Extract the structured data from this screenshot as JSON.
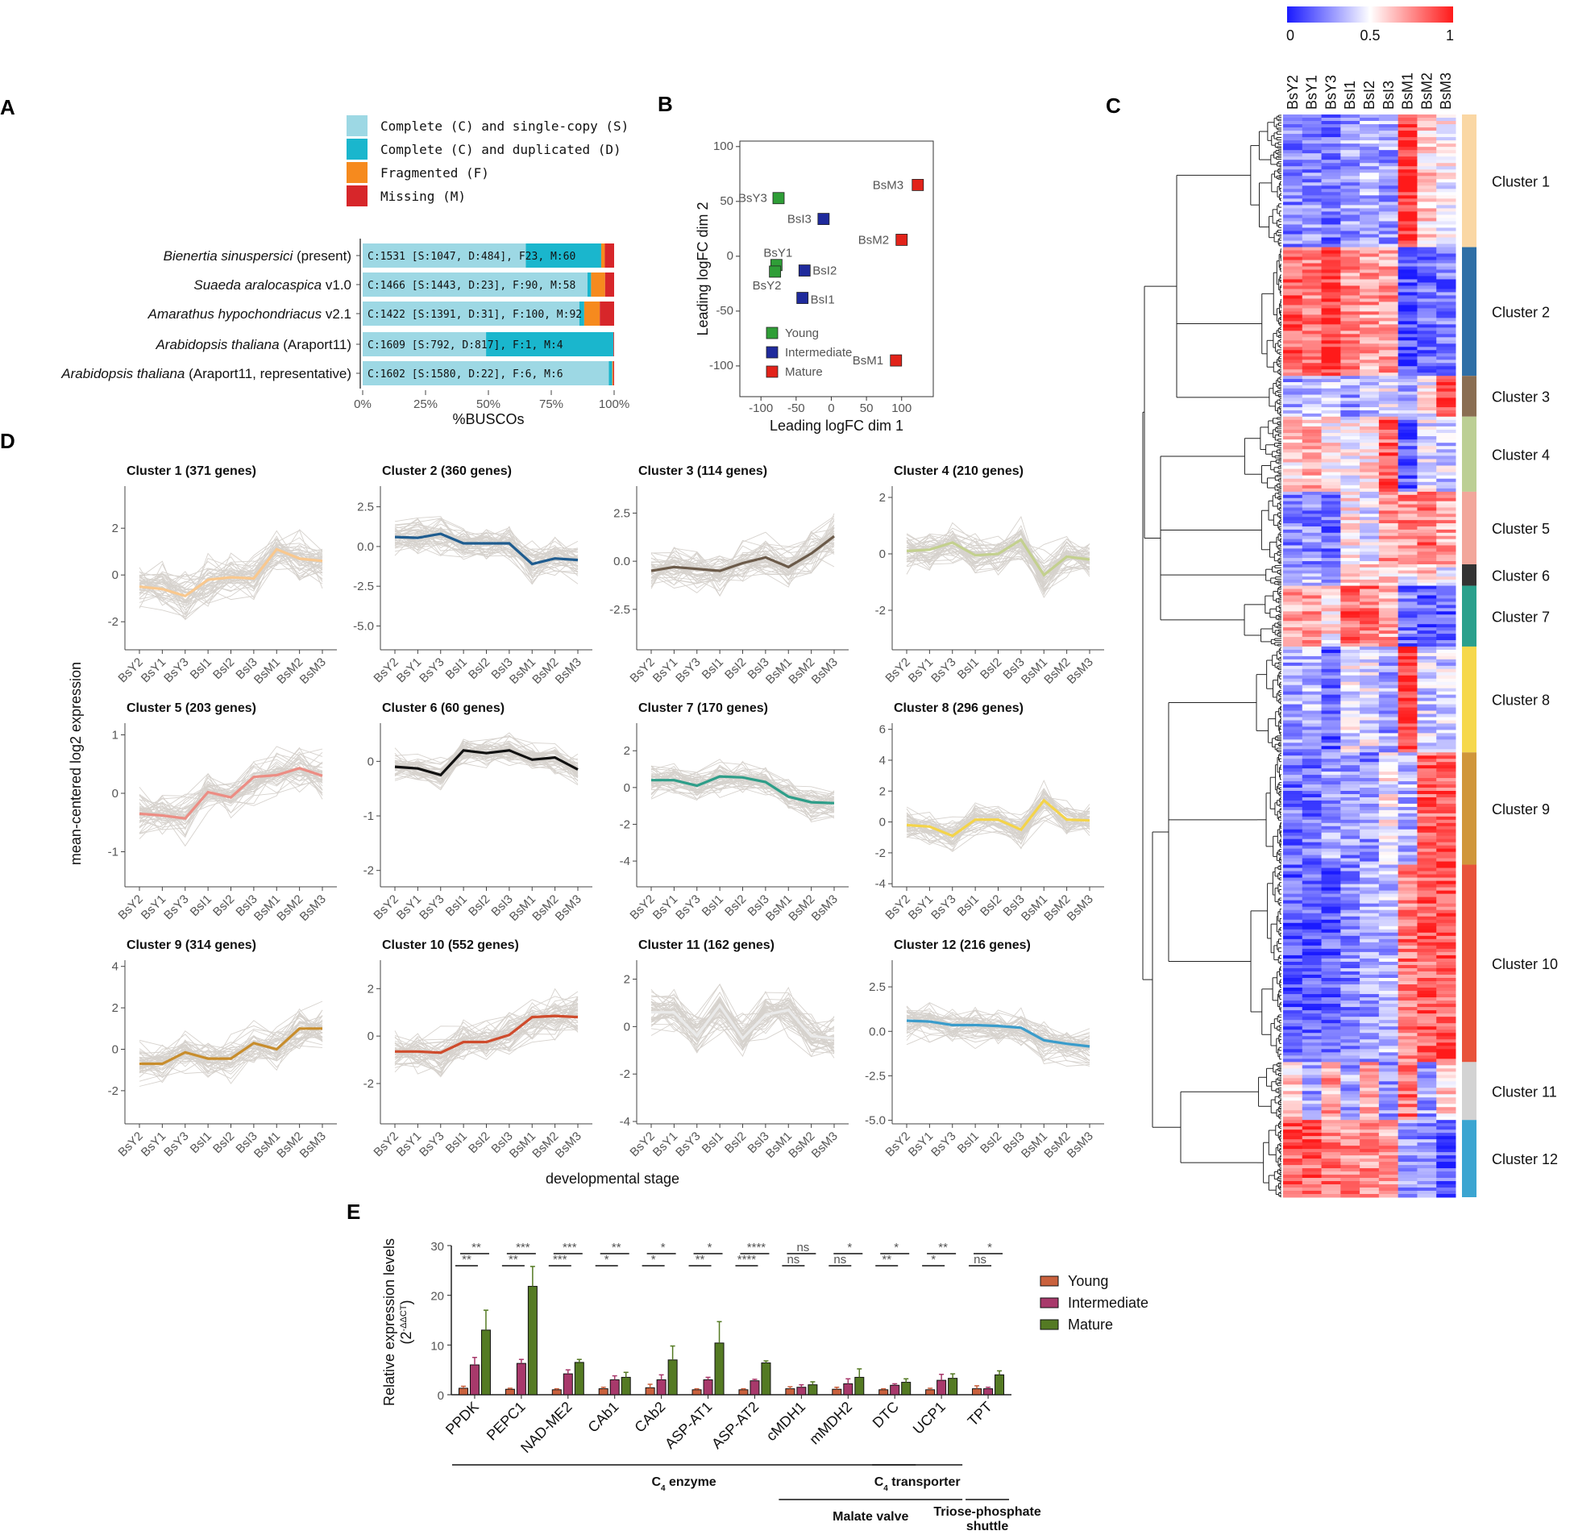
{
  "panels": {
    "A": "A",
    "B": "B",
    "C": "C",
    "D": "D",
    "E": "E"
  },
  "chart_data": [
    {
      "id": "A",
      "type": "bar",
      "stacked": true,
      "orientation": "horizontal",
      "legend": [
        "Complete (C) and single-copy (S)",
        "Complete (C) and duplicated (D)",
        "Fragmented (F)",
        "Missing (M)"
      ],
      "colors": [
        "#9dd8e4",
        "#1ab6cd",
        "#f68a1e",
        "#d7262a"
      ],
      "xlabel": "%BUSCOs",
      "xticks": [
        "0%",
        "25%",
        "50%",
        "75%",
        "100%"
      ],
      "rows": [
        {
          "name_italic": "Bienertia sinuspersici",
          "name_rest": " (present)",
          "label": "C:1531 [S:1047, D:484], F23, M:60",
          "S": 1047,
          "D": 484,
          "F": 23,
          "M": 60
        },
        {
          "name_italic": "Suaeda aralocaspica",
          "name_rest": " v1.0",
          "label": "C:1466 [S:1443, D:23], F:90, M:58",
          "S": 1443,
          "D": 23,
          "F": 90,
          "M": 58
        },
        {
          "name_italic": "Amarathus hypochondriacus",
          "name_rest": " v2.1",
          "label": "C:1422 [S:1391, D:31], F:100, M:92",
          "S": 1391,
          "D": 31,
          "F": 100,
          "M": 92
        },
        {
          "name_italic": "Arabidopsis thaliana",
          "name_rest": " (Araport11)",
          "label": "C:1609 [S:792, D:817], F:1, M:4",
          "S": 792,
          "D": 817,
          "F": 1,
          "M": 4
        },
        {
          "name_italic": "Arabidopsis thaliana",
          "name_rest": " (Araport11, representative)",
          "label": "C:1602 [S:1580, D:22], F:6, M:6",
          "S": 1580,
          "D": 22,
          "F": 6,
          "M": 6
        }
      ]
    },
    {
      "id": "B",
      "type": "scatter",
      "xlabel": "Leading logFC dim 1",
      "ylabel": "Leading logFC dim 2",
      "xlim": [
        -130,
        145
      ],
      "ylim": [
        -128,
        105
      ],
      "xticks": [
        -100,
        -50,
        0,
        50,
        100
      ],
      "yticks": [
        -100,
        -50,
        0,
        50,
        100
      ],
      "legend": [
        {
          "name": "Young",
          "color": "#2f9e37"
        },
        {
          "name": "Intermediate",
          "color": "#1f2a9c"
        },
        {
          "name": "Mature",
          "color": "#e2231a"
        }
      ],
      "points": [
        {
          "label": "BsY3",
          "x": -75,
          "y": 53,
          "group": 0
        },
        {
          "label": "BsY1",
          "x": -78,
          "y": -8,
          "group": 0
        },
        {
          "label": "BsY2",
          "x": -80,
          "y": -14,
          "group": 0
        },
        {
          "label": "BsI3",
          "x": -11,
          "y": 34,
          "group": 1
        },
        {
          "label": "BsI2",
          "x": -38,
          "y": -13,
          "group": 1
        },
        {
          "label": "BsI1",
          "x": -41,
          "y": -38,
          "group": 1
        },
        {
          "label": "BsM3",
          "x": 123,
          "y": 65,
          "group": 2
        },
        {
          "label": "BsM2",
          "x": 100,
          "y": 15,
          "group": 2
        },
        {
          "label": "BsM1",
          "x": 92,
          "y": -95,
          "group": 2
        }
      ]
    },
    {
      "id": "C",
      "type": "heatmap",
      "columns": [
        "BsY2",
        "BsY1",
        "BsY3",
        "BsI1",
        "BsI2",
        "BsI3",
        "BsM1",
        "BsM2",
        "BsM3"
      ],
      "colorbar": {
        "ticks": [
          "0",
          "0.5",
          "1"
        ],
        "low": "#1a1aff",
        "mid": "#ffffff",
        "high": "#ff1a1a"
      },
      "clusters": [
        {
          "name": "Cluster 1",
          "genes": 371,
          "color": "#fad7a4",
          "pattern": [
            0.25,
            0.25,
            0.2,
            0.3,
            0.35,
            0.3,
            0.95,
            0.6,
            0.5
          ]
        },
        {
          "name": "Cluster 2",
          "genes": 360,
          "color": "#2e6fa6",
          "pattern": [
            0.85,
            0.8,
            0.95,
            0.75,
            0.7,
            0.72,
            0.1,
            0.2,
            0.2
          ]
        },
        {
          "name": "Cluster 3",
          "genes": 114,
          "color": "#8a6e52",
          "pattern": [
            0.3,
            0.35,
            0.35,
            0.3,
            0.4,
            0.45,
            0.35,
            0.5,
            0.95
          ]
        },
        {
          "name": "Cluster 4",
          "genes": 210,
          "color": "#bccf94",
          "pattern": [
            0.6,
            0.65,
            0.55,
            0.5,
            0.55,
            0.85,
            0.15,
            0.45,
            0.4
          ]
        },
        {
          "name": "Cluster 5",
          "genes": 203,
          "color": "#f2a79b",
          "pattern": [
            0.25,
            0.25,
            0.2,
            0.55,
            0.45,
            0.7,
            0.75,
            0.8,
            0.7
          ]
        },
        {
          "name": "Cluster 6",
          "genes": 60,
          "color": "#333333",
          "pattern": [
            0.3,
            0.35,
            0.3,
            0.65,
            0.6,
            0.6,
            0.5,
            0.6,
            0.45
          ]
        },
        {
          "name": "Cluster 7",
          "genes": 170,
          "color": "#2aa08c",
          "pattern": [
            0.7,
            0.75,
            0.55,
            0.85,
            0.8,
            0.7,
            0.2,
            0.15,
            0.15
          ]
        },
        {
          "name": "Cluster 8",
          "genes": 296,
          "color": "#f6d84c",
          "pattern": [
            0.3,
            0.35,
            0.15,
            0.45,
            0.45,
            0.3,
            0.97,
            0.4,
            0.4
          ]
        },
        {
          "name": "Cluster 9",
          "genes": 314,
          "color": "#d0963a",
          "pattern": [
            0.2,
            0.2,
            0.3,
            0.25,
            0.25,
            0.5,
            0.35,
            0.85,
            0.85
          ]
        },
        {
          "name": "Cluster 10",
          "genes": 552,
          "color": "#e8533a",
          "pattern": [
            0.15,
            0.15,
            0.15,
            0.25,
            0.3,
            0.35,
            0.8,
            0.85,
            0.85
          ]
        },
        {
          "name": "Cluster 11",
          "genes": 162,
          "color": "#d3d3d3",
          "pattern": [
            0.6,
            0.3,
            0.7,
            0.3,
            0.7,
            0.3,
            0.8,
            0.3,
            0.6
          ]
        },
        {
          "name": "Cluster 12",
          "genes": 216,
          "color": "#3ba5d1",
          "pattern": [
            0.85,
            0.85,
            0.8,
            0.75,
            0.75,
            0.7,
            0.3,
            0.25,
            0.15
          ]
        }
      ]
    },
    {
      "id": "D",
      "type": "line",
      "xlabel": "developmental stage",
      "ylabel": "mean-centered log2 expression",
      "categories": [
        "BsY2",
        "BsY1",
        "BsY3",
        "BsI1",
        "BsI2",
        "BsI3",
        "BsM1",
        "BsM2",
        "BsM3"
      ],
      "panels": [
        {
          "title": "Cluster 1 (371 genes)",
          "color": "#f9c88e",
          "ylim": [
            -3.2,
            3.8
          ],
          "yticks": [
            -2,
            0,
            2
          ],
          "ytickLabels": [
            "-2",
            "0",
            "2"
          ],
          "mean": [
            -0.5,
            -0.6,
            -0.9,
            -0.2,
            -0.1,
            -0.15,
            1.1,
            0.7,
            0.6
          ],
          "spread": 0.7
        },
        {
          "title": "Cluster 2 (360 genes)",
          "color": "#1f5c8f",
          "ylim": [
            -6.5,
            3.8
          ],
          "yticks": [
            -5,
            -2.5,
            0,
            2.5
          ],
          "ytickLabels": [
            "-5.0",
            "-2.5",
            "0.0",
            "2.5"
          ],
          "mean": [
            0.6,
            0.55,
            0.8,
            0.2,
            0.2,
            0.2,
            -1.1,
            -0.75,
            -0.85
          ],
          "spread": 0.9
        },
        {
          "title": "Cluster 3 (114 genes)",
          "color": "#6b5a49",
          "ylim": [
            -4.6,
            3.9
          ],
          "yticks": [
            -2.5,
            0,
            2.5
          ],
          "ytickLabels": [
            "-2.5",
            "0.0",
            "2.5"
          ],
          "mean": [
            -0.5,
            -0.3,
            -0.4,
            -0.5,
            -0.1,
            0.2,
            -0.3,
            0.4,
            1.3
          ],
          "spread": 0.8
        },
        {
          "title": "Cluster 4 (210 genes)",
          "color": "#c3d08e",
          "ylim": [
            -3.4,
            2.4
          ],
          "yticks": [
            -2,
            0,
            2
          ],
          "ytickLabels": [
            "-2",
            "0",
            "2"
          ],
          "mean": [
            0.1,
            0.15,
            0.4,
            -0.05,
            0.0,
            0.5,
            -0.75,
            -0.1,
            -0.2
          ],
          "spread": 0.5
        },
        {
          "title": "Cluster 5 (203 genes)",
          "color": "#ec8d84",
          "ylim": [
            -1.6,
            1.2
          ],
          "yticks": [
            -1,
            0,
            1
          ],
          "ytickLabels": [
            "-1",
            "0",
            "1"
          ],
          "mean": [
            -0.35,
            -0.38,
            -0.43,
            0.02,
            -0.07,
            0.28,
            0.31,
            0.43,
            0.3
          ],
          "spread": 0.28
        },
        {
          "title": "Cluster 6 (60 genes)",
          "color": "#111111",
          "ylim": [
            -2.3,
            0.7
          ],
          "yticks": [
            -2,
            -1,
            0
          ],
          "ytickLabels": [
            "-2",
            "-1",
            "0"
          ],
          "mean": [
            -0.1,
            -0.13,
            -0.25,
            0.2,
            0.15,
            0.2,
            0.03,
            0.07,
            -0.15
          ],
          "spread": 0.2
        },
        {
          "title": "Cluster 7 (170 genes)",
          "color": "#2e9e89",
          "ylim": [
            -5.4,
            3.5
          ],
          "yticks": [
            -4,
            -2,
            0,
            2
          ],
          "ytickLabels": [
            "-4",
            "-2",
            "0",
            "2"
          ],
          "mean": [
            0.4,
            0.4,
            0.1,
            0.6,
            0.55,
            0.3,
            -0.5,
            -0.8,
            -0.85
          ],
          "spread": 0.6
        },
        {
          "title": "Cluster 8 (296 genes)",
          "color": "#f4d44a",
          "ylim": [
            -4.2,
            6.4
          ],
          "yticks": [
            -4,
            -2,
            0,
            2,
            4,
            6
          ],
          "ytickLabels": [
            "-4",
            "-2",
            "0",
            "2",
            "4",
            "6"
          ],
          "mean": [
            -0.2,
            -0.3,
            -0.9,
            0.15,
            0.15,
            -0.5,
            1.4,
            0.15,
            0.1
          ],
          "spread": 0.8
        },
        {
          "title": "Cluster 9 (314 genes)",
          "color": "#c88d2c",
          "ylim": [
            -3.6,
            4.3
          ],
          "yticks": [
            -2,
            0,
            2,
            4
          ],
          "ytickLabels": [
            "-2",
            "0",
            "2",
            "4"
          ],
          "mean": [
            -0.7,
            -0.7,
            -0.15,
            -0.45,
            -0.45,
            0.3,
            0.0,
            1.0,
            1.0
          ],
          "spread": 0.7
        },
        {
          "title": "Cluster 10 (552 genes)",
          "color": "#cf4b2c",
          "ylim": [
            -3.7,
            3.2
          ],
          "yticks": [
            -2,
            0,
            2
          ],
          "ytickLabels": [
            "-2",
            "0",
            "2"
          ],
          "mean": [
            -0.65,
            -0.65,
            -0.7,
            -0.25,
            -0.25,
            0.05,
            0.8,
            0.85,
            0.8
          ],
          "spread": 0.6
        },
        {
          "title": "Cluster 11 (162 genes)",
          "color": "#eaeaea",
          "ylim": [
            -4.1,
            2.8
          ],
          "yticks": [
            -4,
            -2,
            0,
            2
          ],
          "ytickLabels": [
            "-4",
            "-2",
            "0",
            "2"
          ],
          "mean": [
            0.6,
            0.6,
            -0.4,
            0.9,
            -0.5,
            0.5,
            0.7,
            -0.4,
            -0.5
          ],
          "spread": 0.6
        },
        {
          "title": "Cluster 12 (216 genes)",
          "color": "#3a9ccb",
          "ylim": [
            -5.2,
            4.0
          ],
          "yticks": [
            -5,
            -2.5,
            0,
            2.5
          ],
          "ytickLabels": [
            "-5.0",
            "-2.5",
            "0.0",
            "2.5"
          ],
          "mean": [
            0.6,
            0.55,
            0.35,
            0.35,
            0.3,
            0.2,
            -0.5,
            -0.7,
            -0.85
          ],
          "spread": 0.8
        }
      ]
    },
    {
      "id": "E",
      "type": "bar",
      "ylabel": "Relative expression levels",
      "ylabel_formula": "(2",
      "ylabel_sup": "-ΔΔCT",
      "ylabel_close": ")",
      "ylim": [
        0,
        30
      ],
      "yticks": [
        0,
        10,
        20,
        30
      ],
      "categories": [
        "PPDK",
        "PEPC1",
        "NAD-ME2",
        "CAb1",
        "CAb2",
        "ASP-AT1",
        "ASP-AT2",
        "cMDH1",
        "mMDH2",
        "DTC",
        "UCP1",
        "TPT"
      ],
      "series": [
        {
          "name": "Young",
          "color": "#c9613d",
          "values": [
            1.3,
            1.1,
            1.0,
            1.2,
            1.4,
            1.0,
            1.0,
            1.2,
            1.1,
            1.0,
            1.0,
            1.2
          ],
          "err": [
            0.4,
            0.2,
            0.2,
            0.3,
            0.7,
            0.2,
            0.2,
            0.4,
            0.4,
            0.2,
            0.3,
            0.6
          ]
        },
        {
          "name": "Intermediate",
          "color": "#a8396b",
          "values": [
            6.0,
            6.3,
            4.2,
            3.0,
            3.0,
            3.0,
            2.8,
            1.5,
            2.2,
            1.9,
            2.9,
            1.2
          ],
          "err": [
            1.5,
            0.8,
            0.8,
            0.8,
            1.0,
            0.5,
            0.3,
            0.5,
            1.0,
            0.3,
            1.2,
            0.3
          ]
        },
        {
          "name": "Mature",
          "color": "#547a23",
          "values": [
            13.0,
            21.8,
            6.5,
            3.5,
            7.0,
            10.4,
            6.4,
            2.0,
            3.5,
            2.5,
            3.3,
            4.0
          ],
          "err": [
            4.0,
            4.0,
            0.6,
            1.0,
            2.8,
            4.3,
            0.4,
            0.6,
            1.7,
            0.7,
            0.9,
            0.8
          ]
        }
      ],
      "sig_top": [
        "**",
        "***",
        "***",
        "**",
        "*",
        "*",
        "****",
        "ns",
        "*",
        "*",
        "**",
        "*"
      ],
      "sig_bottom": [
        "**",
        "**",
        "***",
        "*",
        "*",
        "**",
        "****",
        "ns",
        "ns",
        "**",
        "*",
        "ns"
      ],
      "groups": [
        {
          "label_main": "C",
          "label_sub": "4",
          "label_rest": " enzyme",
          "from": 0,
          "to": 9
        },
        {
          "label_main": "C",
          "label_sub": "4",
          "label_rest": " transporter",
          "from": 9,
          "to": 10
        },
        {
          "label_main": "Malate valve",
          "label_sub": "",
          "label_rest": "",
          "from": 7,
          "to": 10
        },
        {
          "label_main": "Triose-phosphate",
          "label_sub": "",
          "label_rest": "",
          "label_line2": "shuttle",
          "from": 11,
          "to": 11
        }
      ]
    }
  ]
}
